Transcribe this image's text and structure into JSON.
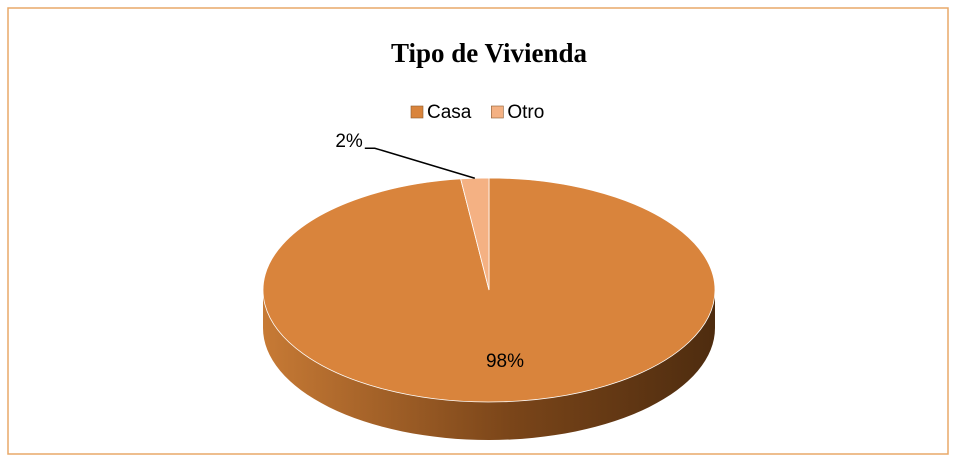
{
  "chart_data": {
    "type": "pie",
    "title": "Tipo de Vivienda",
    "categories": [
      "Casa",
      "Otro"
    ],
    "values": [
      98,
      2
    ],
    "value_labels": [
      "98%",
      "2%"
    ],
    "colors": [
      "#d9843c",
      "#f4b183"
    ],
    "legend": "top"
  }
}
